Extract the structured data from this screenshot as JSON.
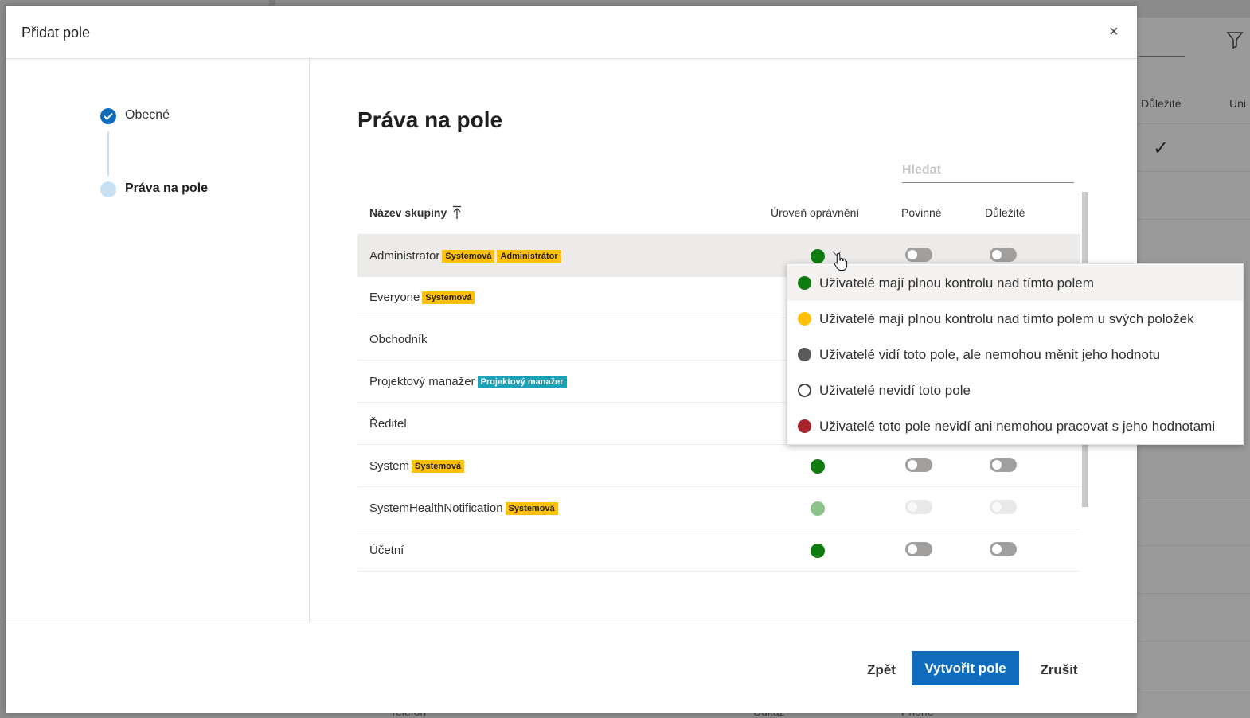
{
  "background": {
    "headers": [
      "Důležité",
      "Uni"
    ],
    "bottom_texts": [
      "Telefon",
      "Údkaz",
      "Phone"
    ]
  },
  "dialog": {
    "title": "Přidat pole",
    "close_label": "×"
  },
  "stepper": {
    "steps": [
      {
        "label": "Obecné",
        "state": "done"
      },
      {
        "label": "Práva na pole",
        "state": "current"
      }
    ]
  },
  "main": {
    "title": "Práva na pole",
    "search_placeholder": "Hledat",
    "columns": {
      "name": "Název skupiny",
      "level": "Úroveň oprávnění",
      "required": "Povinné",
      "important": "Důležité"
    },
    "rows": [
      {
        "name": "Administrator",
        "badges": [
          "Systemová",
          "Administrátor"
        ],
        "level_color": "#107c10",
        "required": false,
        "important": false
      },
      {
        "name": "Everyone",
        "badges": [
          "Systemová"
        ]
      },
      {
        "name": "Obchodník",
        "badges": []
      },
      {
        "name": "Projektový manažer",
        "badges": [
          "Projektový manažer"
        ]
      },
      {
        "name": "Ředitel",
        "badges": []
      },
      {
        "name": "System",
        "badges": [
          "Systemová"
        ],
        "level_color": "#107c10",
        "required": false,
        "important": false
      },
      {
        "name": "SystemHealthNotification",
        "badges": [
          "Systemová"
        ],
        "level_color": "#8cc28c",
        "required": false,
        "important": false,
        "disabled": true
      },
      {
        "name": "Účetní",
        "badges": [],
        "level_color": "#107c10",
        "required": false,
        "important": false
      }
    ]
  },
  "dropdown": {
    "options": [
      {
        "label": "Uživatelé mají plnou kontrolu nad tímto polem",
        "color": "#107c10"
      },
      {
        "label": "Uživatelé mají plnou kontrolu nad tímto polem u svých položek",
        "color": "#ffc107"
      },
      {
        "label": "Uživatelé vidí toto pole, ale nemohou měnit jeho hodnotu",
        "color": "#5a5a5a"
      },
      {
        "label": "Uživatelé nevidí toto pole",
        "color": "#ffffff"
      },
      {
        "label": "Uživatelé toto pole nevidí ani nemohou pracovat s jeho hodnotami",
        "color": "#a4262c"
      }
    ]
  },
  "footer": {
    "back": "Zpět",
    "create": "Vytvořit pole",
    "cancel": "Zrušit"
  }
}
